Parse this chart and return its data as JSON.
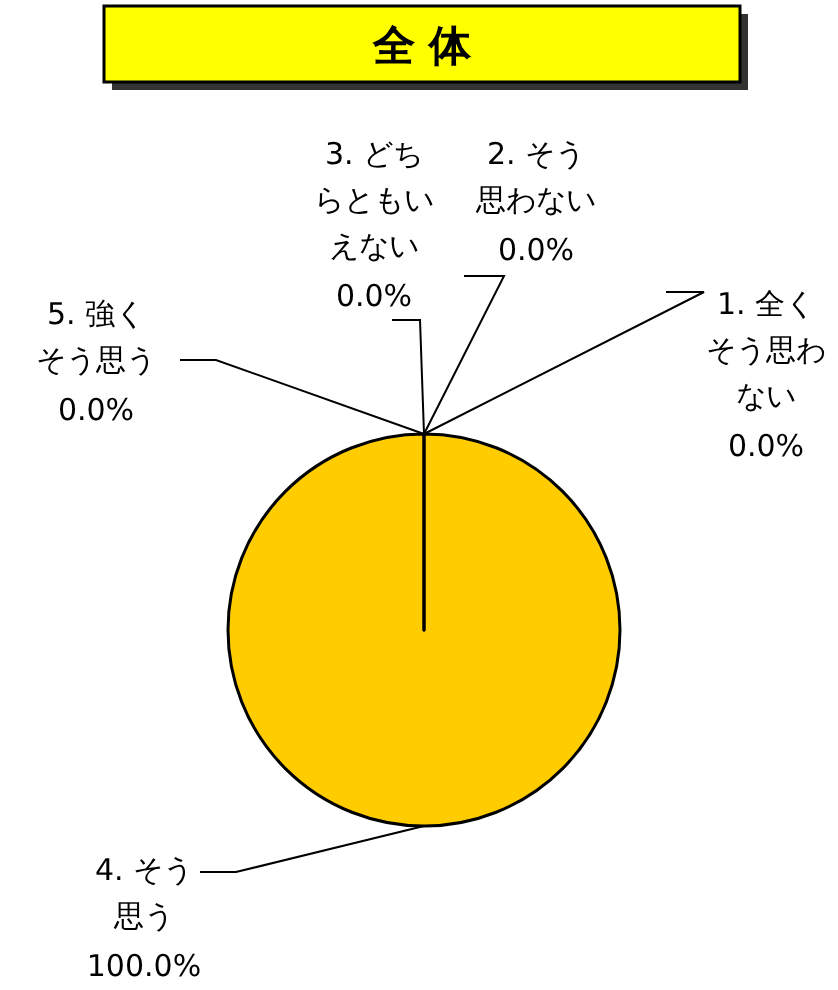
{
  "chart_data": {
    "type": "pie",
    "title": "全 体",
    "categories": [
      "1. 全くそう思わない",
      "2. そう思わない",
      "3. どちらともいえない",
      "4. そう思う",
      "5. 強くそう思う"
    ],
    "values": [
      0,
      0,
      0,
      100,
      0
    ],
    "colors": [
      "#3366ff",
      "#ff6600",
      "#99cc00",
      "#ffcc00",
      "#993366"
    ],
    "value_labels": [
      "0.0%",
      "0.0%",
      "0.0%",
      "100.0%",
      "0.0%"
    ]
  }
}
